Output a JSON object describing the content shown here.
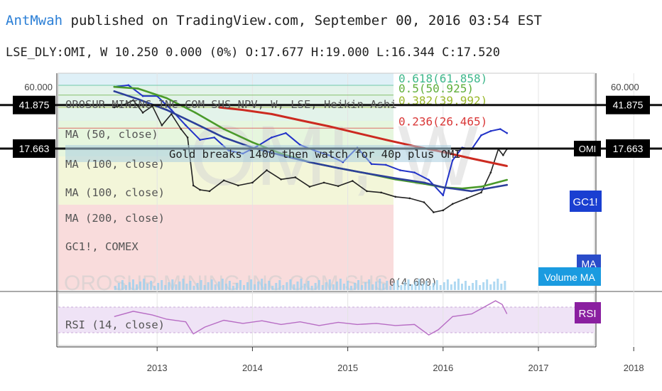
{
  "header": {
    "author": "AntMwah",
    "published_text": " published on TradingView.com, September 00, 2016 03:54 EST",
    "ohlc_line": "LSE_DLY:OMI, W 10.250 0.000 (0%) O:17.677 H:19.000 L:16.344 C:17.520"
  },
  "watermark": "OMI, W",
  "watermark_bottom": "OROSUR MINING INC COM SHS",
  "chart_data": {
    "type": "line",
    "x_axis": {
      "ticks": [
        "2013",
        "2014",
        "2015",
        "2016",
        "2017",
        "2018"
      ]
    },
    "y_axis": {
      "left_ticks": [
        "60.000"
      ],
      "right_ticks": [
        "60.000"
      ],
      "log_scale": true
    },
    "legend": {
      "symbol_line": "OROSUR MINING INC COM SHS NPV, W, LSE, Heikin Ashi",
      "items": [
        "MA (50, close)",
        "MA (100, close)",
        "MA (100, close)",
        "MA (200, close)",
        "GC1!, COMEX"
      ]
    },
    "fib_levels": [
      {
        "label": "0.618(61.858)",
        "value": 61.858,
        "color": "#3fb88c"
      },
      {
        "label": "0.5(50.925)",
        "value": 50.925,
        "color": "#5fae3a"
      },
      {
        "label": "0.382(39.992)",
        "value": 39.992,
        "color": "#9ab82a"
      },
      {
        "label": "0.236(26.465)",
        "value": 26.465,
        "color": "#d93838"
      },
      {
        "label": "0(4.600)",
        "value": 4.6,
        "color": "#555555"
      }
    ],
    "horizontal_lines": [
      {
        "value": 41.875,
        "left_label": "41.875",
        "right_label": "41.875"
      },
      {
        "value": 17.663,
        "left_label": "17.663",
        "right_label": "17.663",
        "tag": "OMI"
      }
    ],
    "annotation": "Gold breaks 1400 then watch for 40p plus OMI",
    "badges": [
      {
        "text": "GC1!",
        "color": "#1a3fd1"
      },
      {
        "text": "MA",
        "color": "#2a4cc9"
      },
      {
        "text": "Volume MA",
        "color": "#1a9be0"
      },
      {
        "text": "RSI",
        "color": "#8a1fa0"
      }
    ],
    "rsi": {
      "label": "RSI (14, close)",
      "upper": 70,
      "lower": 30
    },
    "series": [
      {
        "name": "OMI",
        "color": "#222222",
        "x": [
          2012.55,
          2012.65,
          2012.75,
          2012.85,
          2012.95,
          2013.05,
          2013.15,
          2013.25,
          2013.32,
          2013.38,
          2013.45,
          2013.55,
          2013.7,
          2013.85,
          2014.0,
          2014.15,
          2014.3,
          2014.45,
          2014.6,
          2014.75,
          2014.9,
          2015.05,
          2015.2,
          2015.35,
          2015.5,
          2015.65,
          2015.8,
          2015.9,
          2016.0,
          2016.1,
          2016.25,
          2016.4,
          2016.5,
          2016.58,
          2016.63,
          2016.67
        ],
        "values": [
          40,
          42,
          46,
          36,
          41,
          28,
          35,
          26,
          22,
          8.5,
          7.8,
          7.6,
          9.4,
          8.5,
          9.0,
          11.5,
          9.6,
          10.0,
          8.3,
          9.0,
          8.4,
          9.3,
          7.6,
          7.4,
          6.8,
          6.6,
          6.1,
          5.0,
          5.2,
          5.9,
          6.6,
          7.4,
          11,
          17.5,
          15.5,
          17.5
        ]
      },
      {
        "name": "GC1!",
        "color": "#2233c8",
        "x": [
          2012.55,
          2012.7,
          2012.85,
          2013.0,
          2013.15,
          2013.3,
          2013.45,
          2013.6,
          2013.75,
          2013.9,
          2014.05,
          2014.2,
          2014.35,
          2014.5,
          2014.65,
          2014.8,
          2014.95,
          2015.1,
          2015.25,
          2015.4,
          2015.55,
          2015.7,
          2015.85,
          2016.0,
          2016.1,
          2016.2,
          2016.3,
          2016.4,
          2016.5,
          2016.6,
          2016.67
        ],
        "values": [
          60,
          62,
          50,
          50,
          38,
          28,
          21,
          22,
          17,
          16,
          18.5,
          22,
          24,
          19,
          17,
          15.5,
          13.5,
          18,
          13,
          12.8,
          11.5,
          11,
          9.5,
          7,
          14,
          18,
          17.5,
          23,
          25,
          26,
          24
        ]
      },
      {
        "name": "MA (50, close)",
        "color": "#4a9a2a",
        "x": [
          2012.55,
          2012.8,
          2013.1,
          2013.4,
          2013.7,
          2014.0,
          2014.3,
          2014.6,
          2014.9,
          2015.2,
          2015.5,
          2015.8,
          2016.0,
          2016.2,
          2016.4,
          2016.67
        ],
        "values": [
          60,
          58,
          48,
          36,
          26,
          20,
          16,
          13.5,
          12,
          10.8,
          9.6,
          8.8,
          8.2,
          8.0,
          8.3,
          9.5
        ]
      },
      {
        "name": "MA (100, close)",
        "color": "#2c3f9a",
        "x": [
          2012.55,
          2012.8,
          2013.1,
          2013.4,
          2013.7,
          2014.0,
          2014.3,
          2014.6,
          2014.9,
          2015.2,
          2015.5,
          2015.8,
          2016.0,
          2016.3,
          2016.67
        ],
        "values": [
          55,
          47,
          38,
          29,
          22,
          18,
          15.5,
          13.5,
          12,
          10.8,
          9.8,
          9.0,
          8.2,
          7.6,
          8.6
        ]
      },
      {
        "name": "MA (200, close)",
        "color": "#cc2a20",
        "x": [
          2013.65,
          2013.9,
          2014.2,
          2014.5,
          2014.8,
          2015.1,
          2015.4,
          2015.7,
          2016.0,
          2016.3,
          2016.67
        ],
        "values": [
          40,
          38,
          35,
          31,
          27.5,
          24,
          21,
          18.5,
          16.5,
          14.5,
          12.5
        ]
      },
      {
        "name": "RSI (14, close)",
        "color": "#b76cc4",
        "x": [
          2012.55,
          2012.75,
          2012.95,
          2013.1,
          2013.3,
          2013.38,
          2013.5,
          2013.7,
          2013.9,
          2014.1,
          2014.3,
          2014.5,
          2014.7,
          2014.9,
          2015.1,
          2015.3,
          2015.5,
          2015.7,
          2015.85,
          2015.95,
          2016.1,
          2016.3,
          2016.45,
          2016.55,
          2016.62,
          2016.67
        ],
        "values": [
          55,
          65,
          58,
          50,
          45,
          22,
          35,
          48,
          42,
          47,
          40,
          45,
          38,
          44,
          40,
          42,
          38,
          40,
          20,
          30,
          55,
          60,
          75,
          85,
          78,
          60
        ]
      }
    ]
  }
}
